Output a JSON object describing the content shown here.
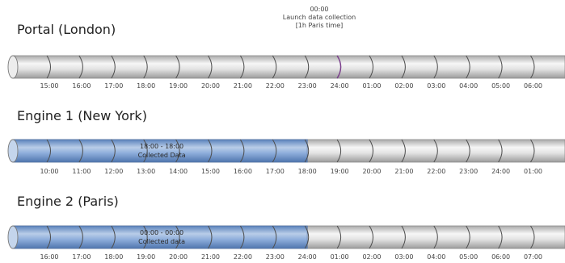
{
  "annotation": {
    "time": "00:00",
    "line1": "Launch data collection",
    "line2": "[1h Paris time]"
  },
  "timelines": [
    {
      "title": "Portal (London)",
      "ticks": [
        "15:00",
        "16:00",
        "17:00",
        "18:00",
        "19:00",
        "20:00",
        "21:00",
        "22:00",
        "23:00",
        "24:00",
        "01:00",
        "02:00",
        "03:00",
        "04:00",
        "05:00",
        "06:00"
      ],
      "collected": null
    },
    {
      "title": "Engine 1 (New York)",
      "ticks": [
        "10:00",
        "11:00",
        "12:00",
        "13:00",
        "14:00",
        "15:00",
        "16:00",
        "17:00",
        "18:00",
        "19:00",
        "20:00",
        "21:00",
        "22:00",
        "23:00",
        "24:00",
        "01:00"
      ],
      "collected": {
        "range": "18:00 - 18:00",
        "label": "Collected Data",
        "end_tick": "18:00"
      }
    },
    {
      "title": "Engine 2 (Paris)",
      "ticks": [
        "16:00",
        "17:00",
        "18:00",
        "19:00",
        "20:00",
        "21:00",
        "22:00",
        "23:00",
        "24:00",
        "01:00",
        "02:00",
        "03:00",
        "04:00",
        "05:00",
        "06:00",
        "07:00"
      ],
      "collected": {
        "range": "00:00 - 00:00",
        "label": "Collected data",
        "end_tick": "24:00"
      }
    }
  ],
  "colors": {
    "cylinder_light": "#f6f6f6",
    "cylinder_mid": "#d8d8d8",
    "cylinder_dark": "#a9a9a9",
    "collected_light": "#b9cde8",
    "collected_mid": "#7ea2d2",
    "collected_dark": "#5a82bb",
    "marker": "#7a3d8c"
  }
}
